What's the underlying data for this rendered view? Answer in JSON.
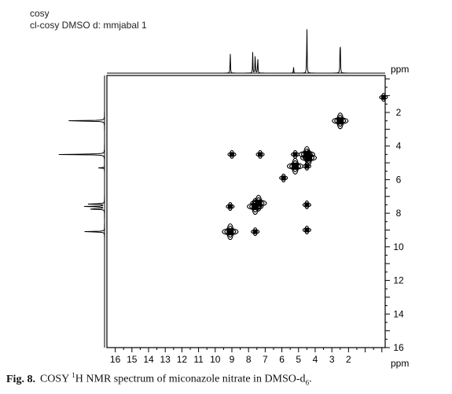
{
  "header": {
    "line1": "cosy",
    "line2": "cl-cosy DMSO d: mmjabal 1"
  },
  "caption": {
    "label": "Fig. 8.",
    "text_before_sup": "COSY ",
    "sup": "1",
    "text_after_sup": "H NMR spectrum of miconazole nitrate in DMSO-d",
    "sub": "6",
    "period": "."
  },
  "chart_data": {
    "type": "scatter",
    "title": "",
    "xlabel": "ppm",
    "ylabel": "ppm",
    "xlim": [
      16.5,
      -0.2
    ],
    "ylim": [
      -0.2,
      16
    ],
    "x_ticks": [
      16,
      15,
      14,
      13,
      12,
      11,
      10,
      9,
      8,
      7,
      6,
      5,
      4,
      3,
      2
    ],
    "y_ticks": [
      2,
      4,
      6,
      8,
      10,
      12,
      14,
      16
    ],
    "grid": false,
    "projection_peaks_ppm": [
      {
        "shift": 9.1,
        "intensity": 0.45
      },
      {
        "shift": 7.75,
        "intensity": 0.38
      },
      {
        "shift": 7.6,
        "intensity": 0.42
      },
      {
        "shift": 7.45,
        "intensity": 0.35
      },
      {
        "shift": 5.3,
        "intensity": 0.12
      },
      {
        "shift": 4.5,
        "intensity": 1.0
      },
      {
        "shift": 2.5,
        "intensity": 0.88
      }
    ],
    "diagonal_peaks": [
      {
        "x": 9.1,
        "y": 9.1
      },
      {
        "x": 7.6,
        "y": 7.6
      },
      {
        "x": 7.4,
        "y": 7.4
      },
      {
        "x": 5.2,
        "y": 5.2
      },
      {
        "x": 4.5,
        "y": 4.5
      },
      {
        "x": 4.4,
        "y": 4.7
      },
      {
        "x": 2.5,
        "y": 2.5
      }
    ],
    "cross_peaks": [
      {
        "x": 5.2,
        "y": 4.5
      },
      {
        "x": 4.5,
        "y": 5.2
      },
      {
        "x": 9.1,
        "y": 7.6
      },
      {
        "x": 7.6,
        "y": 9.1
      },
      {
        "x": 9.0,
        "y": 4.5
      },
      {
        "x": 7.3,
        "y": 4.5
      },
      {
        "x": 4.5,
        "y": 9.0
      },
      {
        "x": 4.5,
        "y": 7.5
      },
      {
        "x": 5.9,
        "y": 5.9
      },
      {
        "x": -0.1,
        "y": 1.1
      }
    ]
  }
}
